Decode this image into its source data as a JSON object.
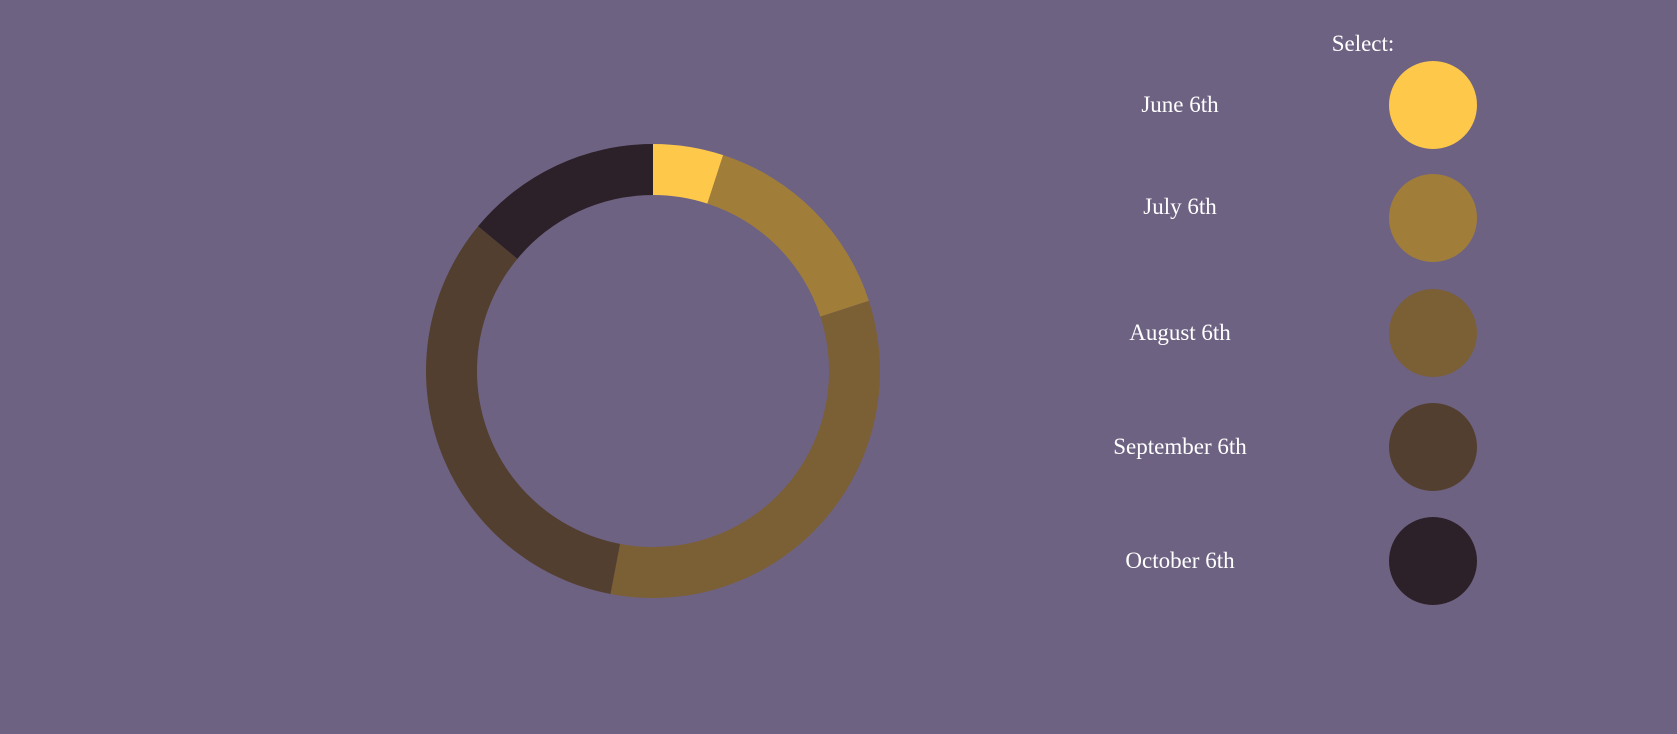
{
  "select_label": "Select:",
  "chart_data": {
    "type": "pie",
    "categories": [
      "June 6th",
      "July 6th",
      "August 6th",
      "September 6th",
      "October 6th"
    ],
    "values": [
      5,
      15,
      33,
      33,
      14
    ],
    "colors": [
      "#fec84a",
      "#a07e3a",
      "#7b5f35",
      "#533f2f",
      "#2c2029"
    ],
    "title": "",
    "legend": "right"
  }
}
